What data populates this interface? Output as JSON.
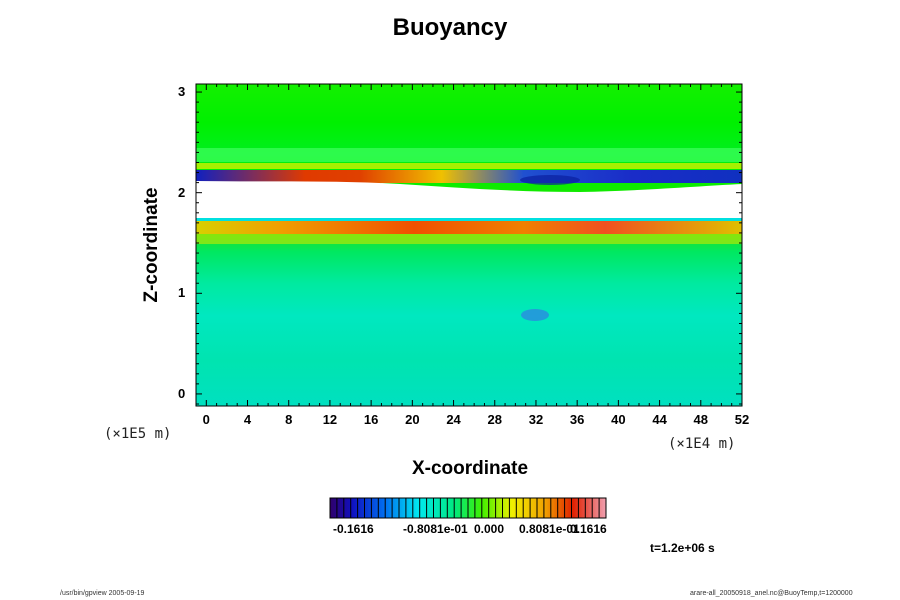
{
  "chart_data": {
    "type": "heatmap",
    "title": "Buoyancy",
    "xlabel": "X-coordinate",
    "ylabel": "Z-coordinate",
    "x_unit": "(×1E4 m)",
    "y_unit": "(×1E5 m)",
    "xlim": [
      -1,
      52
    ],
    "ylim": [
      -0.12,
      3.08
    ],
    "x_ticks": [
      "0",
      "4",
      "8",
      "12",
      "16",
      "20",
      "24",
      "28",
      "32",
      "36",
      "40",
      "44",
      "48",
      "52"
    ],
    "y_ticks": [
      "0",
      "1",
      "2",
      "3"
    ],
    "colorbar": {
      "range": [
        -0.1616,
        0.1616
      ],
      "tick_labels": [
        "-0.1616",
        "-0.8081e-01",
        "0.000",
        "0.8081e-01",
        "0.1616"
      ],
      "colormap": "rainbow"
    },
    "time_label": "t=1.2e+06 s",
    "footer_left": "/usr/bin/gpview 2005-09-19",
    "footer_right": "arare-all_20050918_anel.nc@BuoyTemp,t=1200000",
    "colors": {
      "background_field": "#00ee44",
      "gap": "#ffffff",
      "warm_band": "#f06a00",
      "cold_band": "#1530d0"
    }
  }
}
